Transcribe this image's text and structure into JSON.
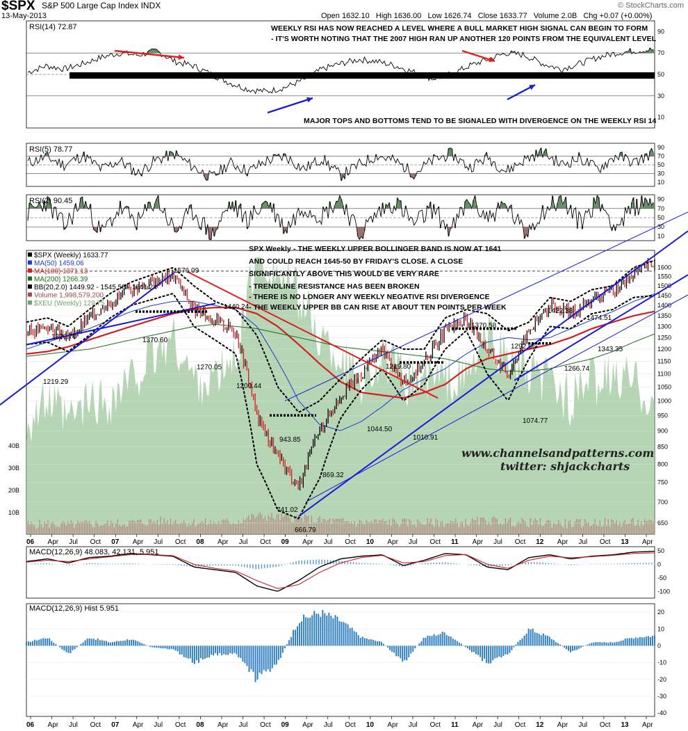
{
  "header": {
    "ticker": "$SPX",
    "name": "S&P 500 Large Cap Index",
    "exchange": "INDX",
    "date": "13-May-2013",
    "quote": "Open 1632.10   High 1636.00   Low 1626.74   Close 1633.77   Volume 2.0B   Chg +0.07 (+0.00%)",
    "brand": "© StockCharts.com"
  },
  "watermark": {
    "site": "www.channelsandpatterns.com",
    "twitter": "twitter: shjackcharts"
  },
  "annotations": {
    "rsi14_line1": "WEEKLY RSI HAS NOW REACHED A LEVEL WHERE A BULL MARKET HIGH SIGNAL CAN BEGIN TO FORM",
    "rsi14_line2": "- IT'S WORTH NOTING THAT THE 2007 HIGH RAN UP ANOTHER 120 POINTS FROM THE EQUIVALENT LEVEL",
    "rsi14_line3": "MAJOR TOPS AND BOTTOMS TEND TO BE SIGNALED WITH DIVERGENCE ON THE WEEKLY RSI 14",
    "price_line1": "SPX Weekly - THE WEEKLY UPPER BOLLINGER BAND IS NOW AT 1641",
    "price_line2": "AND COULD REACH 1645-50 BY FRIDAY'S CLOSE. A CLOSE",
    "price_line3": "SIGNIFICANTLY ABOVE THIS WOULD BE VERY RARE",
    "price_line4": "- TRENDLINE RESISTANCE HAS BEEN BROKEN",
    "price_line5": "- THERE IS NO LONGER ANY WEEKLY NEGATIVE RSI DIVERGENCE",
    "price_line6": "- THE WEEKLY UPPER BB CAN RISE AT ABOUT TEN POINTS PER WEEK"
  },
  "price_labels": [
    {
      "id": "1576",
      "text": "1576.09"
    },
    {
      "id": "1440",
      "text": "1440.24"
    },
    {
      "id": "1370a",
      "text": "1370.60"
    },
    {
      "id": "1326",
      "text": "1326.70"
    },
    {
      "id": "1219a",
      "text": "1219.29"
    },
    {
      "id": "1270",
      "text": "1270.05"
    },
    {
      "id": "1200",
      "text": "1200.44"
    },
    {
      "id": "943",
      "text": "943.85"
    },
    {
      "id": "869",
      "text": "869.32"
    },
    {
      "id": "741",
      "text": "741.02"
    },
    {
      "id": "666",
      "text": "666.79"
    },
    {
      "id": "1219b",
      "text": "1219.80"
    },
    {
      "id": "1044",
      "text": "1044.50"
    },
    {
      "id": "1010",
      "text": "1010.91"
    },
    {
      "id": "1370b",
      "text": "1370.58"
    },
    {
      "id": "1292",
      "text": "1292.66"
    },
    {
      "id": "1074",
      "text": "1074.77"
    },
    {
      "id": "1422",
      "text": "1422.38"
    },
    {
      "id": "1474",
      "text": "1474.51"
    },
    {
      "id": "1266",
      "text": "1266.74"
    },
    {
      "id": "1343",
      "text": "1343.35"
    }
  ],
  "chart_data": [
    {
      "type": "line",
      "title": "RSI(14) 72.87",
      "series": [
        {
          "name": "RSI(14)",
          "values": [
            52,
            58,
            55,
            60,
            66,
            70,
            68,
            72,
            62,
            58,
            50,
            42,
            36,
            34,
            38,
            45,
            55,
            60,
            64,
            62,
            58,
            52,
            46,
            50,
            58,
            64,
            70,
            68,
            60,
            55,
            60,
            66,
            70,
            72,
            73
          ]
        }
      ],
      "ylim": [
        0,
        100
      ],
      "yticks": [
        10,
        30,
        50,
        70,
        90
      ],
      "ref_lines": [
        30,
        50,
        70
      ]
    },
    {
      "type": "line",
      "title": "RSI(5) 78.77",
      "series": [
        {
          "name": "RSI(5)",
          "values": [
            55,
            68,
            50,
            72,
            40,
            60,
            30,
            62,
            75,
            45,
            20,
            55,
            35,
            60,
            70,
            40,
            65,
            25,
            50,
            72,
            58,
            30,
            60,
            76,
            44,
            68,
            35,
            62,
            80,
            50,
            66,
            40,
            72,
            55,
            78.77
          ]
        }
      ],
      "ylim": [
        0,
        100
      ],
      "yticks": [
        10,
        30,
        50,
        70,
        90
      ],
      "ref_lines": [
        30,
        50,
        70
      ]
    },
    {
      "type": "line",
      "title": "RSI(2) 90.45",
      "series": [
        {
          "name": "RSI(2)",
          "values": [
            60,
            85,
            30,
            90,
            15,
            70,
            40,
            92,
            20,
            65,
            10,
            80,
            45,
            88,
            25,
            75,
            55,
            95,
            12,
            60,
            85,
            35,
            70,
            20,
            90,
            50,
            80,
            15,
            65,
            92,
            40,
            88,
            30,
            75,
            90.45
          ]
        }
      ],
      "ylim": [
        0,
        100
      ],
      "yticks": [
        10,
        30,
        50,
        70,
        90
      ],
      "ref_lines": [
        30,
        50,
        70
      ]
    },
    {
      "type": "line",
      "title": "$SPX (Weekly) 1633.77",
      "legend": [
        {
          "text": "$SPX (Weekly) 1633.77",
          "color": "#000000"
        },
        {
          "text": "MA(50) 1459.06",
          "color": "#1a3cc9"
        },
        {
          "text": "MA(100) 1371.13",
          "color": "#d11f1f"
        },
        {
          "text": "MA(200) 1266.39",
          "color": "#1d6b1d"
        },
        {
          "text": "BB(20,2.0) 1449.92 - 1545.58 - 1641.24",
          "color": "#000000"
        },
        {
          "text": "Volume 1,998,579,200",
          "color": "#a24a4a"
        },
        {
          "text": "$XEU (Weekly) 129.75",
          "color": "#6ea56e"
        }
      ],
      "x_ticks": [
        "06",
        "Apr",
        "Jul",
        "Oct",
        "07",
        "Apr",
        "Jul",
        "Oct",
        "08",
        "Apr",
        "Jul",
        "Oct",
        "09",
        "Apr",
        "Jul",
        "Oct",
        "10",
        "Apr",
        "Jul",
        "Oct",
        "11",
        "Apr",
        "Jul",
        "Oct",
        "12",
        "Apr",
        "Jul",
        "Oct",
        "13",
        "Apr"
      ],
      "x": [
        "2006-01",
        "2006-04",
        "2006-07",
        "2006-10",
        "2007-01",
        "2007-04",
        "2007-07",
        "2007-10",
        "2008-01",
        "2008-04",
        "2008-07",
        "2008-10",
        "2009-01",
        "2009-04",
        "2009-07",
        "2009-10",
        "2010-01",
        "2010-04",
        "2010-07",
        "2010-10",
        "2011-01",
        "2011-04",
        "2011-07",
        "2011-10",
        "2012-01",
        "2012-04",
        "2012-07",
        "2012-10",
        "2013-01",
        "2013-04",
        "2013-05"
      ],
      "series": [
        {
          "name": "$SPX",
          "values": [
            1270,
            1300,
            1240,
            1340,
            1420,
            1480,
            1520,
            1560,
            1380,
            1330,
            1280,
            950,
            820,
            740,
            900,
            1020,
            1100,
            1200,
            1060,
            1150,
            1280,
            1330,
            1200,
            1100,
            1280,
            1400,
            1360,
            1430,
            1470,
            1560,
            1633.77
          ]
        },
        {
          "name": "MA(50)",
          "values": [
            1200,
            1230,
            1260,
            1290,
            1330,
            1370,
            1400,
            1420,
            1420,
            1400,
            1380,
            1300,
            1150,
            1000,
            920,
            900,
            930,
            980,
            1040,
            1080,
            1120,
            1180,
            1230,
            1250,
            1240,
            1250,
            1290,
            1330,
            1370,
            1420,
            1459.06
          ]
        },
        {
          "name": "MA(100)",
          "values": [
            1180,
            1190,
            1210,
            1240,
            1270,
            1300,
            1330,
            1360,
            1380,
            1390,
            1390,
            1360,
            1300,
            1220,
            1140,
            1070,
            1030,
            1020,
            1010,
            1030,
            1060,
            1120,
            1160,
            1180,
            1200,
            1220,
            1250,
            1290,
            1320,
            1350,
            1371.13
          ]
        },
        {
          "name": "MA(200)",
          "values": [
            1170,
            1180,
            1190,
            1200,
            1220,
            1240,
            1260,
            1280,
            1300,
            1310,
            1300,
            1290,
            1270,
            1250,
            1230,
            1210,
            1200,
            1190,
            1180,
            1170,
            1160,
            1140,
            1120,
            1110,
            1110,
            1120,
            1140,
            1160,
            1190,
            1230,
            1266.39
          ]
        },
        {
          "name": "BB upper",
          "values": [
            1320,
            1340,
            1300,
            1380,
            1460,
            1520,
            1560,
            1600,
            1500,
            1420,
            1380,
            1260,
            1050,
            960,
            1000,
            1080,
            1160,
            1240,
            1200,
            1200,
            1340,
            1380,
            1360,
            1280,
            1320,
            1440,
            1420,
            1480,
            1500,
            1600,
            1641.24
          ]
        },
        {
          "name": "BB lower",
          "values": [
            1220,
            1230,
            1190,
            1260,
            1340,
            1400,
            1430,
            1460,
            1300,
            1240,
            1180,
            800,
            680,
            660,
            760,
            940,
            1040,
            1120,
            1000,
            1060,
            1200,
            1280,
            1100,
            1000,
            1160,
            1300,
            1290,
            1360,
            1380,
            1440,
            1449.92
          ]
        }
      ],
      "volume": [
        4,
        5,
        4,
        5,
        5,
        6,
        7,
        8,
        6,
        6,
        7,
        12,
        11,
        10,
        8,
        7,
        6,
        7,
        6,
        6,
        6,
        6,
        8,
        7,
        6,
        6,
        5,
        6,
        6,
        6,
        5
      ],
      "volume_yticks": [
        "10B",
        "20B",
        "30B",
        "40B"
      ],
      "ylim": [
        625,
        1700
      ],
      "yticks": [
        650,
        700,
        750,
        800,
        850,
        900,
        950,
        1000,
        1050,
        1100,
        1150,
        1200,
        1250,
        1300,
        1350,
        1400,
        1450,
        1500,
        1550,
        1600
      ],
      "scale": "log"
    },
    {
      "type": "line",
      "title": "MACD(12,26,9) 48.083, 42.131, 5.951",
      "series": [
        {
          "name": "MACD",
          "values": [
            10,
            20,
            5,
            25,
            30,
            40,
            35,
            30,
            -10,
            -20,
            -30,
            -80,
            -100,
            -60,
            -10,
            20,
            30,
            35,
            -5,
            15,
            40,
            35,
            -10,
            -20,
            25,
            35,
            20,
            30,
            35,
            45,
            48.083
          ]
        },
        {
          "name": "Signal",
          "values": [
            8,
            15,
            10,
            20,
            28,
            36,
            36,
            32,
            0,
            -15,
            -25,
            -60,
            -90,
            -75,
            -30,
            5,
            25,
            33,
            5,
            10,
            32,
            36,
            0,
            -15,
            15,
            30,
            24,
            28,
            33,
            40,
            42.131
          ]
        }
      ],
      "ylim": [
        -125,
        65
      ],
      "yticks": [
        -100,
        -50,
        0,
        50
      ]
    },
    {
      "type": "bar",
      "title": "MACD(12,26,9) Hist 5.951",
      "series": [
        {
          "name": "Hist",
          "values": [
            2,
            5,
            -5,
            5,
            2,
            4,
            -1,
            -2,
            -10,
            -5,
            -5,
            -20,
            -10,
            15,
            20,
            15,
            5,
            2,
            -10,
            5,
            8,
            -1,
            -10,
            -5,
            10,
            5,
            -4,
            2,
            2,
            5,
            5.951
          ]
        }
      ],
      "ylim": [
        -42,
        25
      ],
      "yticks": [
        -40,
        -30,
        -20,
        -10,
        0,
        10,
        20
      ]
    }
  ]
}
